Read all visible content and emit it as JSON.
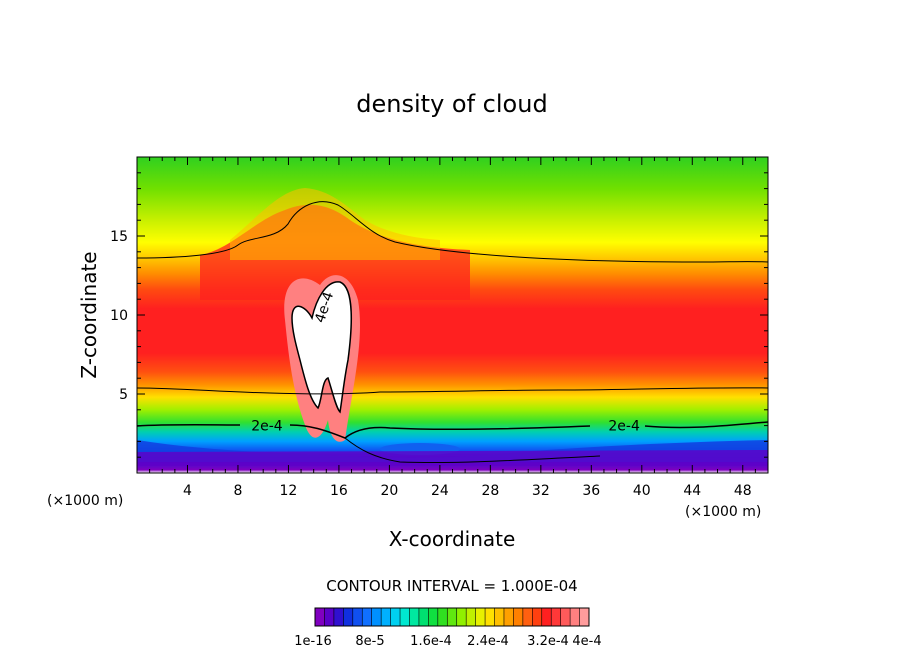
{
  "chart_data": {
    "type": "heatmap",
    "title": "density of cloud",
    "xlabel": "X-coordinate",
    "ylabel": "Z-coordinate",
    "x_unit": "(×1000 m)",
    "y_unit": "(×1000 m)",
    "xlim": [
      0,
      50
    ],
    "ylim": [
      0,
      20
    ],
    "x_ticks": [
      4,
      8,
      12,
      16,
      20,
      24,
      28,
      32,
      36,
      40,
      44,
      48
    ],
    "y_ticks": [
      5,
      10,
      15
    ],
    "contour_interval_text": "CONTOUR INTERVAL = 1.000E-04",
    "contour_labels": [
      {
        "text": "2e-4",
        "x": 10.3,
        "z": 3.0
      },
      {
        "text": "2e-4",
        "x": 38.6,
        "z": 3.0
      },
      {
        "text": "4e-4",
        "x": 14.8,
        "z": 10.5
      }
    ],
    "colorbar": {
      "colors": [
        "#8000c0",
        "#5a00c8",
        "#3010d0",
        "#1030e0",
        "#1050f0",
        "#1070ff",
        "#0090ff",
        "#00b0ff",
        "#00d0f0",
        "#00e8d0",
        "#00e8a0",
        "#00e070",
        "#10e040",
        "#30e020",
        "#60e810",
        "#90f000",
        "#c0f000",
        "#e8f000",
        "#ffe000",
        "#ffc000",
        "#ffa000",
        "#ff8000",
        "#ff6010",
        "#ff4010",
        "#ff2020",
        "#ff3838",
        "#ff5a5a",
        "#ff8080",
        "#ff9c9c"
      ],
      "labels": [
        "1e-16",
        "8e-5",
        "1.6e-4",
        "2.4e-4",
        "3.2e-4",
        "4e-4"
      ]
    }
  }
}
